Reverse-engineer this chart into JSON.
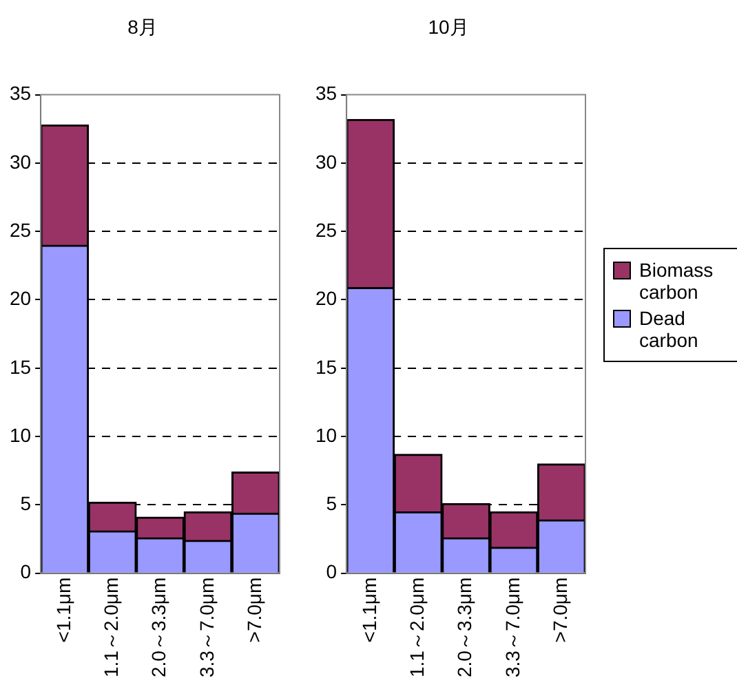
{
  "chart_data": [
    {
      "type": "bar",
      "title": "8月",
      "stacked": true,
      "categories": [
        "<1.1μm",
        "1.1～2.0μm",
        "2.0～3.3μm",
        "3.3～7.0μm",
        ">7.0μm"
      ],
      "series": [
        {
          "color": "#9999ff",
          "values": [
            24,
            3.1,
            2.6,
            2.4,
            4.4
          ]
        },
        {
          "color": "#993366",
          "values": [
            8.8,
            2.1,
            1.5,
            2.1,
            3.0
          ]
        }
      ],
      "ylim": [
        0,
        35
      ],
      "yticks": [
        0,
        5,
        10,
        15,
        20,
        25,
        30,
        35
      ],
      "grid": "y",
      "legend": false
    },
    {
      "type": "bar",
      "title": "10月",
      "stacked": true,
      "categories": [
        "<1.1μm",
        "1.1～2.0μm",
        "2.0～3.3μm",
        "3.3～7.0μm",
        ">7.0μm"
      ],
      "series": [
        {
          "name": "Dead carbon",
          "color": "#9999ff",
          "values": [
            20.9,
            4.5,
            2.6,
            1.9,
            3.9
          ]
        },
        {
          "name": "Biomass carbon",
          "color": "#993366",
          "values": [
            12.3,
            4.2,
            2.5,
            2.6,
            4.1
          ]
        }
      ],
      "ylim": [
        0,
        35
      ],
      "yticks": [
        0,
        5,
        10,
        15,
        20,
        25,
        30,
        35
      ],
      "grid": "y",
      "legend": "right"
    }
  ]
}
